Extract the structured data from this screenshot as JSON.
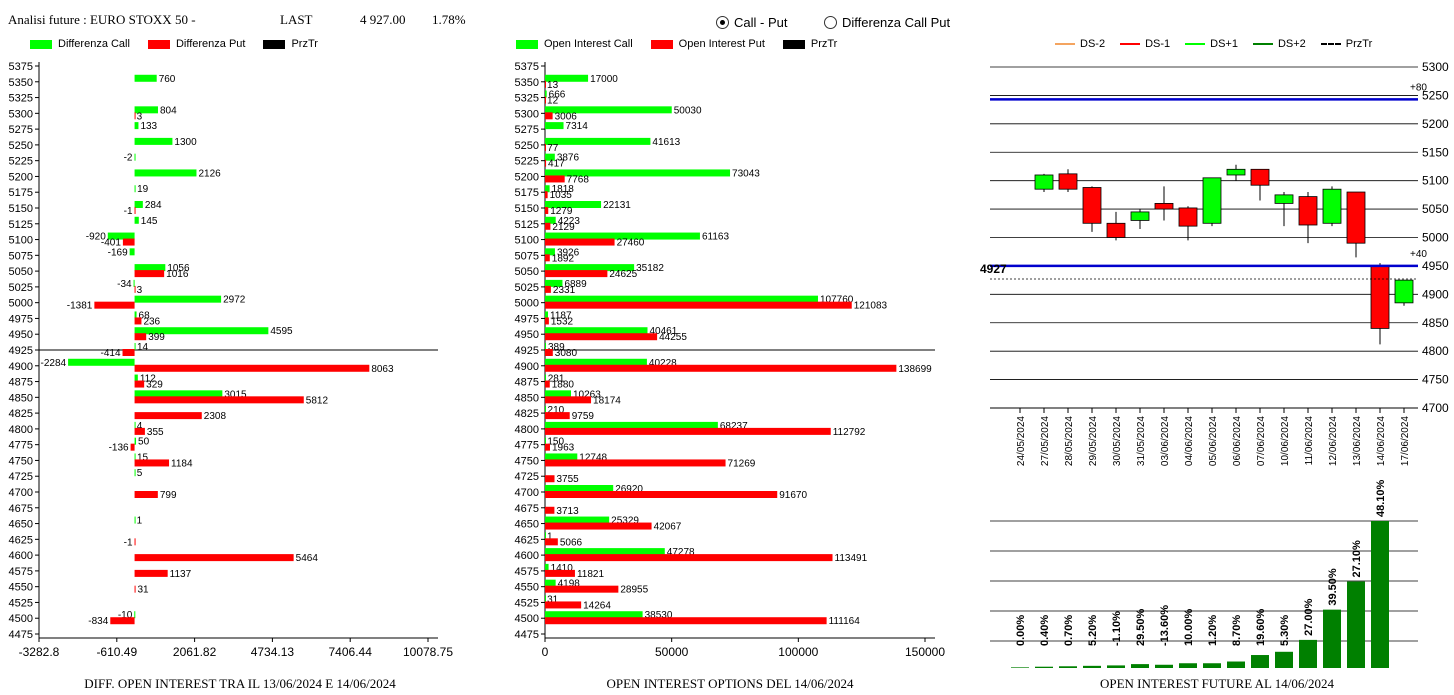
{
  "header": {
    "title": "Analisi future : EURO STOXX 50 -",
    "last_label": "LAST",
    "last_value": "4 927.00",
    "change": "1.78%"
  },
  "mode_options": [
    {
      "label": "Call - Put",
      "selected": true
    },
    {
      "label": "Differenza Call Put",
      "selected": false
    }
  ],
  "colors": {
    "green": "#00ff00",
    "red": "#ff0000",
    "dark_green": "#008000",
    "blue": "#0000cd",
    "orange": "#f4a460"
  },
  "legend1": [
    {
      "label": "Differenza Call",
      "color": "#00ff00"
    },
    {
      "label": "Differenza Put",
      "color": "#ff0000"
    },
    {
      "label": "PrzTr",
      "color": "#000000"
    }
  ],
  "legend2": [
    {
      "label": "Open Interest Call",
      "color": "#00ff00"
    },
    {
      "label": "Open Interest Put",
      "color": "#ff0000"
    },
    {
      "label": "PrzTr",
      "color": "#000000"
    }
  ],
  "legend3": [
    {
      "label": "DS-2",
      "color": "#f4a460",
      "style": "solid"
    },
    {
      "label": "DS-1",
      "color": "#ff0000",
      "style": "solid"
    },
    {
      "label": "DS+1",
      "color": "#00ff00",
      "style": "solid"
    },
    {
      "label": "DS+2",
      "color": "#008000",
      "style": "solid"
    },
    {
      "label": "PrzTr",
      "color": "#000000",
      "style": "dashed"
    }
  ],
  "captions": {
    "left": "DIFF. OPEN INTEREST TRA IL 13/06/2024 E 14/06/2024",
    "middle": "OPEN INTEREST OPTIONS DEL 14/06/2024",
    "right": "OPEN INTEREST FUTURE AL 14/06/2024"
  },
  "chart_data": [
    {
      "type": "bar",
      "orientation": "horizontal",
      "categories": [
        5375,
        5350,
        5325,
        5300,
        5275,
        5250,
        5225,
        5200,
        5175,
        5150,
        5125,
        5100,
        5075,
        5050,
        5025,
        5000,
        4975,
        4950,
        4925,
        4900,
        4875,
        4850,
        4825,
        4800,
        4775,
        4750,
        4725,
        4700,
        4675,
        4650,
        4625,
        4600,
        4575,
        4550,
        4525,
        4500,
        4475
      ],
      "series": [
        {
          "name": "Differenza Call",
          "values": [
            null,
            760,
            null,
            804,
            133,
            1300,
            -2,
            2126,
            19,
            284,
            145,
            -920,
            -169,
            1056,
            -34,
            2972,
            68,
            4595,
            14,
            -2284,
            112,
            3015,
            null,
            4,
            50,
            15,
            5,
            null,
            null,
            1,
            null,
            null,
            null,
            null,
            null,
            -10,
            null
          ]
        },
        {
          "name": "Differenza Put",
          "values": [
            null,
            null,
            null,
            3,
            null,
            null,
            null,
            null,
            null,
            -1,
            null,
            -401,
            null,
            1016,
            3,
            -1381,
            236,
            399,
            -414,
            8063,
            329,
            5812,
            2308,
            355,
            -136,
            1184,
            null,
            799,
            null,
            null,
            -1,
            5464,
            1137,
            31,
            null,
            -834,
            null
          ]
        }
      ],
      "xticks": [
        "-3282.8",
        "-610.49",
        "2061.82",
        "4734.13",
        "7406.44",
        "10078.75"
      ],
      "xlim": [
        -3282.8,
        10078.75
      ],
      "reference_line": 4925
    },
    {
      "type": "bar",
      "orientation": "horizontal",
      "categories": [
        5375,
        5350,
        5325,
        5300,
        5275,
        5250,
        5225,
        5200,
        5175,
        5150,
        5125,
        5100,
        5075,
        5050,
        5025,
        5000,
        4975,
        4950,
        4925,
        4900,
        4875,
        4850,
        4825,
        4800,
        4775,
        4750,
        4725,
        4700,
        4675,
        4650,
        4625,
        4600,
        4575,
        4550,
        4525,
        4500,
        4475
      ],
      "series": [
        {
          "name": "Open Interest Call",
          "values": [
            null,
            17000,
            666,
            50030,
            7314,
            41613,
            3876,
            73043,
            1818,
            22131,
            4223,
            61163,
            3926,
            35182,
            6889,
            107760,
            1187,
            40461,
            389,
            40228,
            281,
            10263,
            210,
            68237,
            150,
            12748,
            null,
            26920,
            null,
            25329,
            1,
            47278,
            1410,
            4198,
            31,
            38530,
            null
          ]
        },
        {
          "name": "Open Interest Put",
          "values": [
            null,
            13,
            12,
            3006,
            null,
            77,
            417,
            7768,
            1035,
            1279,
            2129,
            27460,
            1892,
            24625,
            2331,
            121083,
            1532,
            44255,
            3080,
            138699,
            1880,
            18174,
            9759,
            112792,
            1963,
            71269,
            3755,
            91670,
            3713,
            42067,
            5066,
            113491,
            11821,
            28955,
            14264,
            111164,
            null
          ]
        }
      ],
      "xticks": [
        "0",
        "50000",
        "100000",
        "150000"
      ],
      "xlim": [
        0,
        150000
      ],
      "reference_line": 4925
    },
    {
      "type": "candlestick",
      "dates": [
        "24/05/2024",
        "27/05/2024",
        "28/05/2024",
        "29/05/2024",
        "30/05/2024",
        "31/05/2024",
        "03/06/2024",
        "04/06/2024",
        "05/06/2024",
        "06/06/2024",
        "07/06/2024",
        "10/06/2024",
        "11/06/2024",
        "12/06/2024",
        "13/06/2024",
        "14/06/2024",
        "17/06/2024"
      ],
      "ohlc": [
        null,
        [
          5085,
          5112,
          5080,
          5110
        ],
        [
          5112,
          5120,
          5080,
          5085
        ],
        [
          5088,
          5090,
          5010,
          5025
        ],
        [
          5025,
          5045,
          4995,
          5000
        ],
        [
          5030,
          5050,
          5015,
          5045
        ],
        [
          5060,
          5090,
          5030,
          5050
        ],
        [
          5052,
          5055,
          4995,
          5020
        ],
        [
          5025,
          5105,
          5020,
          5105
        ],
        [
          5110,
          5128,
          5100,
          5120
        ],
        [
          5120,
          5120,
          5065,
          5092
        ],
        [
          5060,
          5080,
          5020,
          5075
        ],
        [
          5072,
          5080,
          4990,
          5022
        ],
        [
          5025,
          5090,
          5020,
          5085
        ],
        [
          5080,
          5080,
          4965,
          4990
        ],
        [
          4950,
          4955,
          4812,
          4840
        ],
        [
          4885,
          4920,
          4880,
          4925
        ]
      ],
      "yticks": [
        "5300",
        "5250",
        "5200",
        "5150",
        "5100",
        "5050",
        "5000",
        "4950",
        "4900",
        "4850",
        "4800",
        "4750",
        "4700"
      ],
      "ylim": [
        4700,
        5300
      ],
      "levels": [
        {
          "value": 5243,
          "label": "+80"
        },
        {
          "value": 4950,
          "label": "+40"
        }
      ],
      "last_label": "4927",
      "last_value": 4927
    },
    {
      "type": "bar",
      "categories": [
        "24/05/2024",
        "27/05/2024",
        "28/05/2024",
        "29/05/2024",
        "30/05/2024",
        "31/05/2024",
        "03/06/2024",
        "04/06/2024",
        "05/06/2024",
        "06/06/2024",
        "07/06/2024",
        "10/06/2024",
        "11/06/2024",
        "12/06/2024",
        "13/06/2024",
        "14/06/2024",
        "17/06/2024"
      ],
      "values": [
        0.3,
        0.6,
        0.8,
        1.0,
        1.2,
        1.8,
        1.5,
        2.2,
        2.2,
        3.0,
        6.0,
        7.5,
        13.0,
        27.0,
        40.0,
        68.0,
        null
      ],
      "labels": [
        "0.00%",
        "0.40%",
        "0.70%",
        "5.20%",
        "-1.10%",
        "29.50%",
        "-13.60%",
        "10.00%",
        "1.20%",
        "8.70%",
        "19.60%",
        "5.30%",
        "27.00%",
        "39.50%",
        "27.10%",
        "48.10%"
      ]
    }
  ]
}
